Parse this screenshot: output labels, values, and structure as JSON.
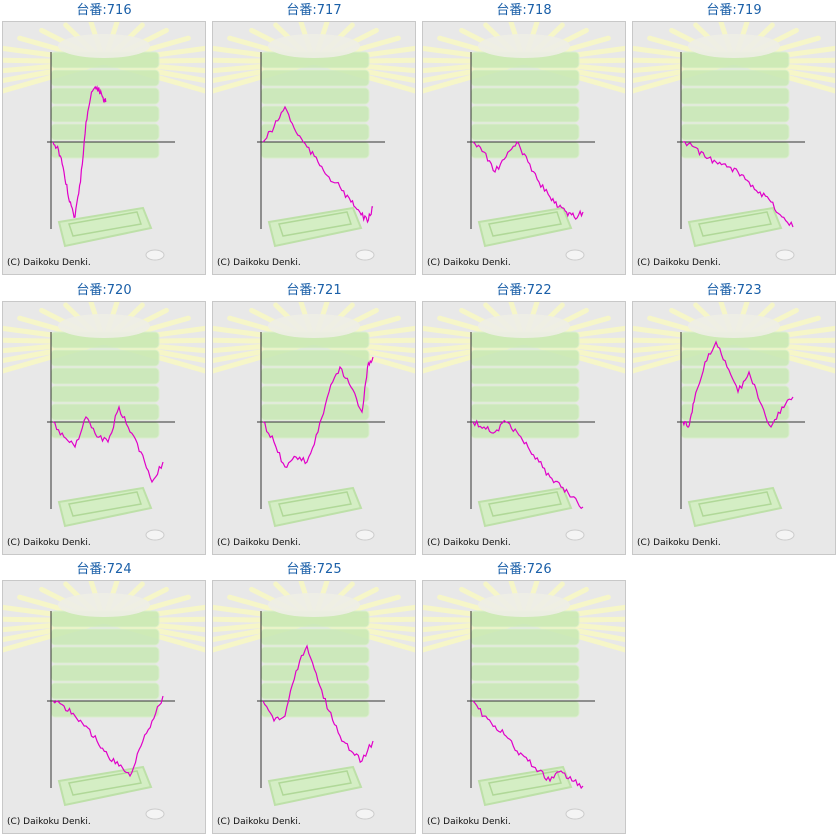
{
  "copyright": "(C) Daikoku Denki.",
  "colors": {
    "title": "#1a5fa8",
    "graph_line": "#e000c8",
    "axis": "#333333",
    "panel_bg": "#e8e8e8",
    "rays": "#f6f6c8",
    "machine": "#c8e8b4"
  },
  "icons": [
    "slot-machine-watermark"
  ],
  "machines": [
    {
      "id": "716",
      "label": "台番:716",
      "graph": [
        [
          0,
          0
        ],
        [
          0.05,
          -8
        ],
        [
          0.1,
          -30
        ],
        [
          0.15,
          -60
        ],
        [
          0.2,
          -75
        ],
        [
          0.25,
          -40
        ],
        [
          0.3,
          20
        ],
        [
          0.35,
          50
        ],
        [
          0.4,
          55
        ],
        [
          0.45,
          45
        ],
        [
          0.48,
          40
        ]
      ]
    },
    {
      "id": "717",
      "label": "台番:717",
      "graph": [
        [
          0,
          0
        ],
        [
          0.1,
          15
        ],
        [
          0.2,
          35
        ],
        [
          0.3,
          10
        ],
        [
          0.4,
          -5
        ],
        [
          0.5,
          -20
        ],
        [
          0.6,
          -35
        ],
        [
          0.7,
          -45
        ],
        [
          0.8,
          -60
        ],
        [
          0.88,
          -70
        ],
        [
          0.95,
          -80
        ],
        [
          1.0,
          -65
        ]
      ]
    },
    {
      "id": "718",
      "label": "台番:718",
      "graph": [
        [
          0,
          0
        ],
        [
          0.1,
          -10
        ],
        [
          0.2,
          -30
        ],
        [
          0.3,
          -15
        ],
        [
          0.4,
          0
        ],
        [
          0.5,
          -20
        ],
        [
          0.6,
          -40
        ],
        [
          0.7,
          -55
        ],
        [
          0.78,
          -65
        ],
        [
          0.85,
          -70
        ],
        [
          0.92,
          -75
        ],
        [
          1.0,
          -70
        ]
      ]
    },
    {
      "id": "719",
      "label": "台番:719",
      "graph": [
        [
          0,
          0
        ],
        [
          0.1,
          -5
        ],
        [
          0.2,
          -15
        ],
        [
          0.3,
          -20
        ],
        [
          0.4,
          -25
        ],
        [
          0.5,
          -30
        ],
        [
          0.6,
          -40
        ],
        [
          0.7,
          -50
        ],
        [
          0.8,
          -60
        ],
        [
          0.9,
          -75
        ],
        [
          1.0,
          -85
        ]
      ]
    },
    {
      "id": "720",
      "label": "台番:720",
      "graph": [
        [
          0,
          0
        ],
        [
          0.1,
          -15
        ],
        [
          0.2,
          -25
        ],
        [
          0.3,
          5
        ],
        [
          0.4,
          -15
        ],
        [
          0.5,
          -20
        ],
        [
          0.6,
          15
        ],
        [
          0.7,
          -10
        ],
        [
          0.8,
          -30
        ],
        [
          0.9,
          -60
        ],
        [
          1.0,
          -40
        ]
      ]
    },
    {
      "id": "721",
      "label": "台番:721",
      "graph": [
        [
          0,
          0
        ],
        [
          0.1,
          -20
        ],
        [
          0.2,
          -45
        ],
        [
          0.3,
          -35
        ],
        [
          0.4,
          -40
        ],
        [
          0.5,
          -10
        ],
        [
          0.6,
          30
        ],
        [
          0.7,
          55
        ],
        [
          0.8,
          35
        ],
        [
          0.9,
          10
        ],
        [
          0.95,
          55
        ],
        [
          1.0,
          65
        ]
      ]
    },
    {
      "id": "722",
      "label": "台番:722",
      "graph": [
        [
          0,
          0
        ],
        [
          0.1,
          -5
        ],
        [
          0.2,
          -10
        ],
        [
          0.3,
          0
        ],
        [
          0.4,
          -10
        ],
        [
          0.5,
          -25
        ],
        [
          0.6,
          -40
        ],
        [
          0.7,
          -55
        ],
        [
          0.8,
          -65
        ],
        [
          0.9,
          -75
        ],
        [
          1.0,
          -85
        ]
      ]
    },
    {
      "id": "723",
      "label": "台番:723",
      "graph": [
        [
          0,
          0
        ],
        [
          0.05,
          -5
        ],
        [
          0.1,
          20
        ],
        [
          0.2,
          60
        ],
        [
          0.3,
          80
        ],
        [
          0.4,
          55
        ],
        [
          0.5,
          30
        ],
        [
          0.6,
          50
        ],
        [
          0.7,
          20
        ],
        [
          0.8,
          -5
        ],
        [
          0.9,
          15
        ],
        [
          1.0,
          25
        ]
      ]
    },
    {
      "id": "724",
      "label": "台番:724",
      "graph": [
        [
          0,
          0
        ],
        [
          0.1,
          -5
        ],
        [
          0.2,
          -15
        ],
        [
          0.3,
          -25
        ],
        [
          0.4,
          -40
        ],
        [
          0.5,
          -55
        ],
        [
          0.6,
          -65
        ],
        [
          0.7,
          -75
        ],
        [
          0.8,
          -45
        ],
        [
          0.9,
          -20
        ],
        [
          1.0,
          5
        ]
      ]
    },
    {
      "id": "725",
      "label": "台番:725",
      "graph": [
        [
          0,
          0
        ],
        [
          0.1,
          -20
        ],
        [
          0.2,
          -15
        ],
        [
          0.3,
          30
        ],
        [
          0.4,
          55
        ],
        [
          0.5,
          20
        ],
        [
          0.6,
          -10
        ],
        [
          0.7,
          -35
        ],
        [
          0.8,
          -50
        ],
        [
          0.9,
          -60
        ],
        [
          1.0,
          -40
        ]
      ]
    },
    {
      "id": "726",
      "label": "台番:726",
      "graph": [
        [
          0,
          0
        ],
        [
          0.1,
          -15
        ],
        [
          0.2,
          -25
        ],
        [
          0.3,
          -35
        ],
        [
          0.4,
          -50
        ],
        [
          0.5,
          -60
        ],
        [
          0.6,
          -70
        ],
        [
          0.7,
          -80
        ],
        [
          0.8,
          -70
        ],
        [
          0.9,
          -80
        ],
        [
          1.0,
          -85
        ]
      ]
    }
  ]
}
